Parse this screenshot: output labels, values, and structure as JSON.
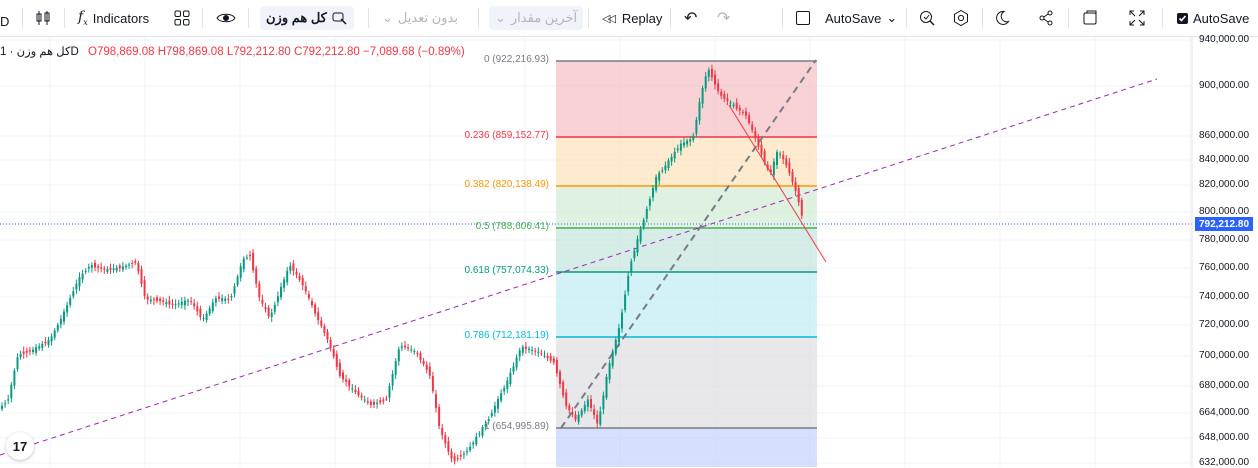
{
  "toolbar": {
    "indicators_label": "Indicators",
    "symbol_label": "کل هم وزن",
    "adjust_label": "بدون تعدیل",
    "last_value_label": "آخرین مقدار",
    "replay_label": "Replay",
    "autosave_label": "AutoSave",
    "autosave_check_label": "AutoSave",
    "symbol_letter": "D"
  },
  "legend": {
    "symbol": "کل هم وزن",
    "interval": "· 1D",
    "open": "O798,869.08",
    "high": "H798,869.08",
    "low": "L792,212.80",
    "close": "C792,212.80",
    "change": "−7,089.68 (−0.89%)"
  },
  "price_axis": {
    "labels": [
      "940,000.00",
      "900,000.00",
      "860,000.00",
      "840,000.00",
      "820,000.00",
      "800,000.00",
      "780,000.00",
      "760,000.00",
      "740,000.00",
      "720,000.00",
      "700,000.00",
      "680,000.00",
      "664,000.00",
      "648,000.00",
      "632,000.00"
    ],
    "last_price": "792,212.80"
  },
  "fib": {
    "levels": [
      {
        "label": "0 (922,216.93)",
        "color": "#787b86"
      },
      {
        "label": "0.236 (859,152.77)",
        "color": "#f23645"
      },
      {
        "label": "0.382 (820,138.49)",
        "color": "#ff9800"
      },
      {
        "label": "0.5 (788,606.41)",
        "color": "#4caf50"
      },
      {
        "label": "0.618 (757,074.33)",
        "color": "#089981"
      },
      {
        "label": "0.786 (712,181.19)",
        "color": "#00bcd4"
      },
      {
        "label": "1 (654,995.89)",
        "color": "#787b86"
      }
    ]
  },
  "logo_text": "17",
  "colors": {
    "up": "#089981",
    "down": "#f23645",
    "accent": "#2962ff"
  }
}
